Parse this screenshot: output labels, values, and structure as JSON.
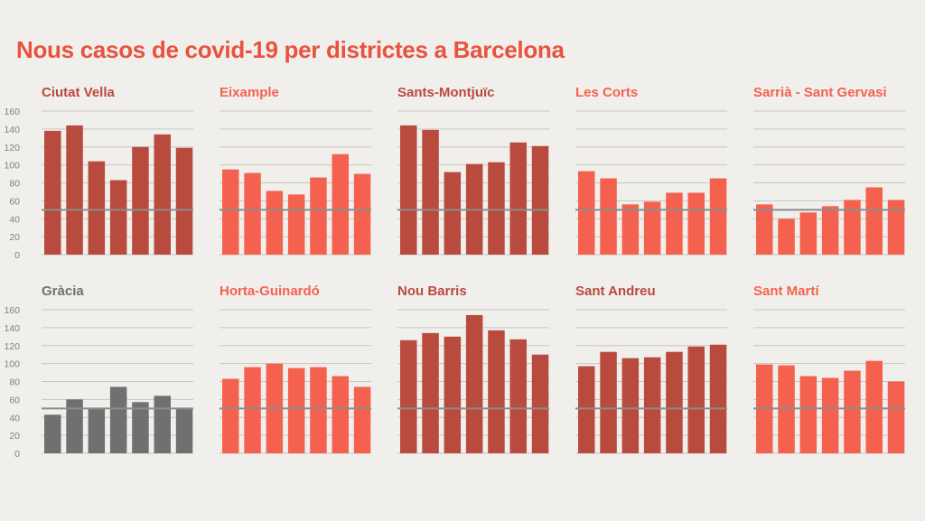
{
  "page": {
    "title": "Nous casos de covid-19 per districtes a Barcelona",
    "background": "#f1efeb",
    "title_color": "#e8533f"
  },
  "colors": {
    "dark_red": "#b94a3e",
    "light_red": "#f4624f",
    "gray": "#707070",
    "grid": "#c9c6c2",
    "reference_line": "#8c8c8c"
  },
  "chart_data": [
    {
      "type": "bar",
      "title": "Ciutat Vella",
      "title_color": "#b94a3e",
      "bar_color": "#b94a3e",
      "values": [
        138,
        144,
        104,
        83,
        120,
        134,
        119
      ],
      "ylim": [
        0,
        160
      ],
      "yticks": [
        "0",
        "20",
        "40",
        "60",
        "80",
        "100",
        "120",
        "140",
        "160"
      ],
      "reference_line": 50
    },
    {
      "type": "bar",
      "title": "Eixample",
      "title_color": "#f4624f",
      "bar_color": "#f4624f",
      "values": [
        95,
        91,
        71,
        67,
        86,
        112,
        90
      ],
      "ylim": [
        0,
        160
      ],
      "reference_line": 50
    },
    {
      "type": "bar",
      "title": "Sants-Montjuïc",
      "title_color": "#b94a3e",
      "bar_color": "#b94a3e",
      "values": [
        144,
        139,
        92,
        101,
        103,
        125,
        121
      ],
      "ylim": [
        0,
        160
      ],
      "reference_line": 50
    },
    {
      "type": "bar",
      "title": "Les Corts",
      "title_color": "#f4624f",
      "bar_color": "#f4624f",
      "values": [
        93,
        85,
        56,
        59,
        69,
        69,
        85
      ],
      "ylim": [
        0,
        160
      ],
      "reference_line": 50
    },
    {
      "type": "bar",
      "title": "Sarrià - Sant Gervasi",
      "title_color": "#f4624f",
      "bar_color": "#f4624f",
      "values": [
        56,
        40,
        47,
        54,
        61,
        75,
        61
      ],
      "ylim": [
        0,
        160
      ],
      "reference_line": 50
    },
    {
      "type": "bar",
      "title": "Gràcia",
      "title_color": "#707070",
      "bar_color": "#707070",
      "values": [
        43,
        60,
        50,
        74,
        57,
        64,
        50
      ],
      "ylim": [
        0,
        160
      ],
      "yticks": [
        "0",
        "20",
        "40",
        "60",
        "80",
        "100",
        "120",
        "140",
        "160"
      ],
      "reference_line": 50
    },
    {
      "type": "bar",
      "title": "Horta-Guinardó",
      "title_color": "#f4624f",
      "bar_color": "#f4624f",
      "values": [
        83,
        96,
        100,
        95,
        96,
        86,
        74
      ],
      "ylim": [
        0,
        160
      ],
      "reference_line": 50
    },
    {
      "type": "bar",
      "title": "Nou Barris",
      "title_color": "#b94a3e",
      "bar_color": "#b94a3e",
      "values": [
        126,
        134,
        130,
        154,
        137,
        127,
        110
      ],
      "ylim": [
        0,
        160
      ],
      "reference_line": 50
    },
    {
      "type": "bar",
      "title": "Sant Andreu",
      "title_color": "#b94a3e",
      "bar_color": "#b94a3e",
      "values": [
        97,
        113,
        106,
        107,
        113,
        119,
        121
      ],
      "ylim": [
        0,
        160
      ],
      "reference_line": 50
    },
    {
      "type": "bar",
      "title": "Sant Martí",
      "title_color": "#f4624f",
      "bar_color": "#f4624f",
      "values": [
        99,
        98,
        86,
        84,
        92,
        103,
        80
      ],
      "ylim": [
        0,
        160
      ],
      "reference_line": 50
    }
  ]
}
